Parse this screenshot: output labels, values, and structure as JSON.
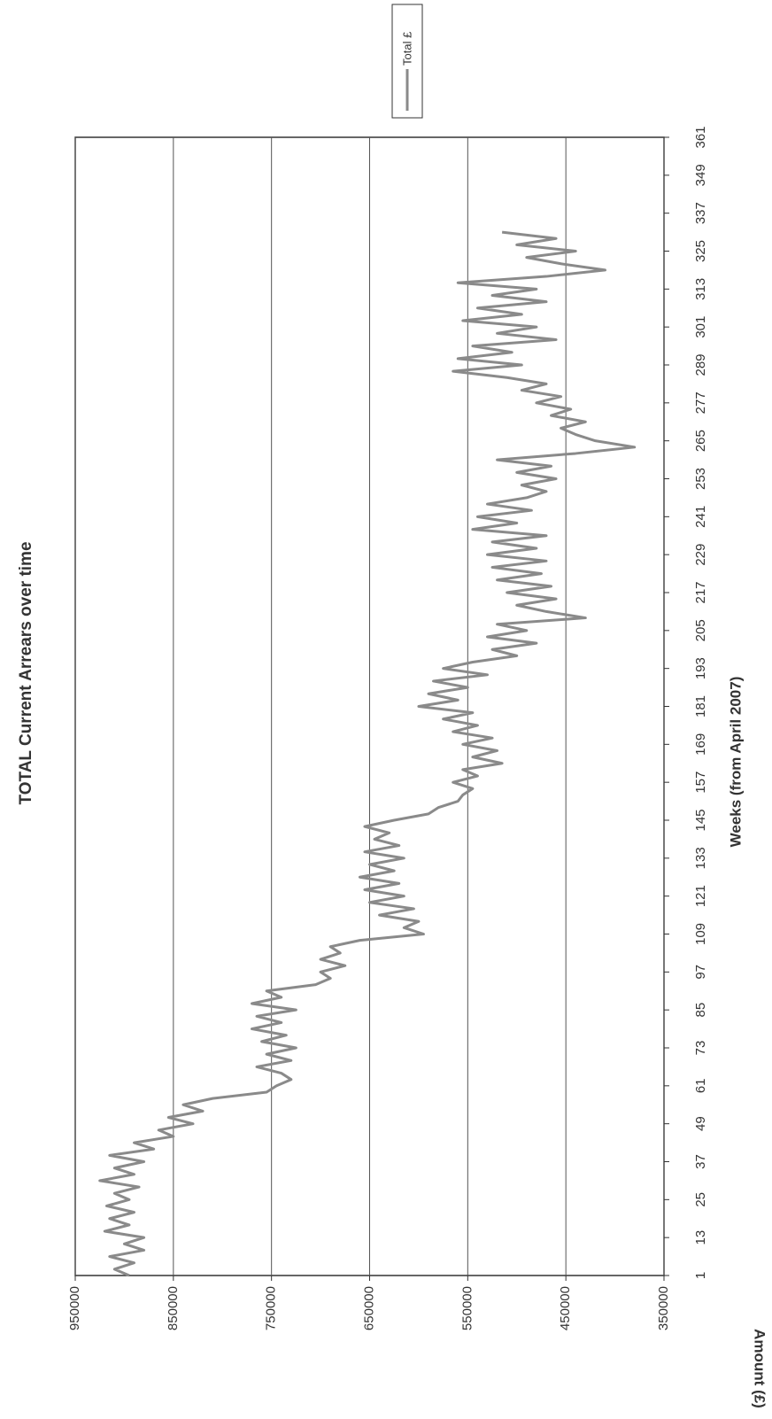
{
  "chart_data": {
    "type": "line",
    "title": "TOTAL Current Arrears over time",
    "x_label": "Weeks (from April 2007)",
    "y_label": "Amount (£)",
    "legend_position": "upper right",
    "grid": true,
    "xlim": [
      1,
      361
    ],
    "xticks": [
      1,
      13,
      25,
      37,
      49,
      61,
      73,
      85,
      97,
      109,
      121,
      133,
      145,
      157,
      169,
      181,
      193,
      205,
      217,
      229,
      241,
      253,
      265,
      277,
      289,
      301,
      313,
      325,
      337,
      349,
      361
    ],
    "ylim": [
      350000,
      950000
    ],
    "yticks": [
      350000,
      450000,
      550000,
      650000,
      750000,
      850000,
      950000
    ],
    "x": [
      1,
      3,
      5,
      7,
      9,
      11,
      13,
      15,
      17,
      19,
      21,
      23,
      25,
      27,
      29,
      31,
      33,
      35,
      37,
      39,
      41,
      43,
      45,
      47,
      49,
      51,
      53,
      55,
      57,
      59,
      61,
      63,
      65,
      67,
      69,
      71,
      73,
      75,
      77,
      79,
      81,
      83,
      85,
      87,
      89,
      91,
      93,
      95,
      97,
      99,
      101,
      103,
      105,
      107,
      109,
      111,
      113,
      115,
      117,
      119,
      121,
      123,
      125,
      127,
      129,
      131,
      133,
      135,
      137,
      139,
      141,
      143,
      145,
      147,
      149,
      151,
      153,
      155,
      157,
      159,
      161,
      163,
      165,
      167,
      169,
      171,
      173,
      175,
      177,
      179,
      181,
      183,
      185,
      187,
      189,
      191,
      193,
      195,
      197,
      199,
      201,
      203,
      205,
      207,
      209,
      211,
      213,
      215,
      217,
      219,
      221,
      223,
      225,
      227,
      229,
      231,
      233,
      235,
      237,
      239,
      241,
      243,
      245,
      247,
      249,
      251,
      253,
      255,
      257,
      259,
      261,
      263,
      265,
      267,
      269,
      271,
      273,
      275,
      277,
      279,
      281,
      283,
      285,
      287,
      289,
      291,
      293,
      295,
      297,
      299,
      301,
      303,
      305,
      307,
      309,
      311,
      313,
      315,
      317,
      319,
      321,
      323,
      325,
      327,
      329,
      331
    ],
    "series": [
      {
        "name": "Total £",
        "color": "#8a8a8a",
        "values": [
          895000,
          910000,
          890000,
          915000,
          880000,
          900000,
          880000,
          920000,
          895000,
          915000,
          890000,
          918000,
          895000,
          910000,
          885000,
          925000,
          890000,
          910000,
          880000,
          915000,
          870000,
          890000,
          850000,
          865000,
          830000,
          855000,
          820000,
          840000,
          810000,
          755000,
          745000,
          730000,
          740000,
          765000,
          730000,
          755000,
          725000,
          760000,
          735000,
          770000,
          740000,
          765000,
          725000,
          770000,
          740000,
          755000,
          705000,
          690000,
          700000,
          675000,
          700000,
          680000,
          690000,
          660000,
          595000,
          615000,
          600000,
          640000,
          605000,
          650000,
          615000,
          655000,
          620000,
          660000,
          625000,
          650000,
          615000,
          655000,
          620000,
          645000,
          630000,
          655000,
          625000,
          590000,
          580000,
          560000,
          555000,
          545000,
          565000,
          540000,
          555000,
          515000,
          545000,
          520000,
          555000,
          525000,
          565000,
          540000,
          575000,
          545000,
          600000,
          560000,
          590000,
          550000,
          585000,
          530000,
          575000,
          545000,
          500000,
          525000,
          480000,
          530000,
          490000,
          520000,
          430000,
          470000,
          500000,
          460000,
          510000,
          465000,
          520000,
          475000,
          525000,
          470000,
          530000,
          480000,
          525000,
          470000,
          545000,
          500000,
          540000,
          485000,
          530000,
          490000,
          470000,
          495000,
          460000,
          500000,
          465000,
          520000,
          440000,
          380000,
          420000,
          440000,
          455000,
          430000,
          465000,
          445000,
          480000,
          455000,
          495000,
          470000,
          510000,
          565000,
          495000,
          560000,
          505000,
          545000,
          460000,
          520000,
          480000,
          555000,
          495000,
          540000,
          470000,
          525000,
          480000,
          560000,
          470000,
          410000,
          455000,
          490000,
          440000,
          500000,
          460000,
          515000
        ]
      }
    ]
  }
}
